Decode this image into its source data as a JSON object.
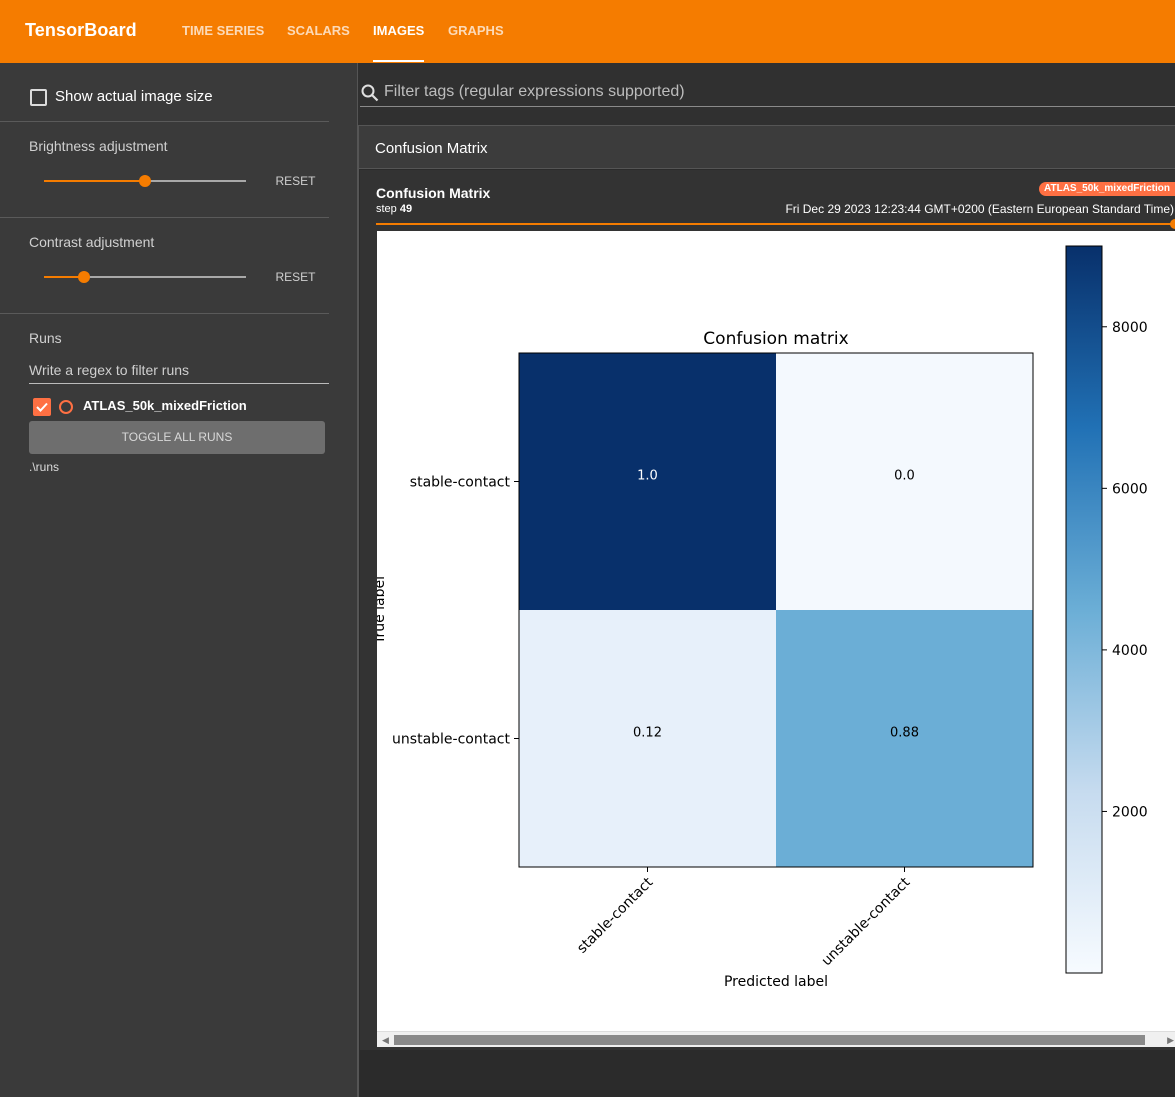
{
  "app": {
    "brand": "TensorBoard",
    "nav_tabs": [
      "TIME SERIES",
      "SCALARS",
      "IMAGES",
      "GRAPHS"
    ],
    "active_tab": "IMAGES",
    "accent_color": "#f57c00",
    "run_color": "#ff7043"
  },
  "sidebar": {
    "show_actual_size_label": "Show actual image size",
    "show_actual_size_checked": false,
    "brightness": {
      "title": "Brightness adjustment",
      "value_fraction": 0.5,
      "reset_label": "RESET"
    },
    "contrast": {
      "title": "Contrast adjustment",
      "value_fraction": 0.2,
      "reset_label": "RESET"
    },
    "runs": {
      "title": "Runs",
      "filter_placeholder": "Write a regex to filter runs",
      "items": [
        {
          "name": "ATLAS_50k_mixedFriction",
          "checked": true
        }
      ],
      "toggle_all_label": "TOGGLE ALL RUNS",
      "path": ".\\runs"
    }
  },
  "main": {
    "filter_placeholder": "Filter tags (regular expressions supported)",
    "group_title": "Confusion Matrix",
    "card": {
      "title": "Confusion Matrix",
      "step_label": "step",
      "step_value": "49",
      "run_tag": "ATLAS_50k_mixedFriction",
      "timestamp": "Fri Dec 29 2023 12:23:44 GMT+0200 (Eastern European Standard Time)"
    }
  },
  "chart_data": {
    "type": "heatmap",
    "title": "Confusion matrix",
    "xlabel": "Predicted label",
    "ylabel": "True label",
    "x_categories": [
      "stable-contact",
      "unstable-contact"
    ],
    "y_categories": [
      "stable-contact",
      "unstable-contact"
    ],
    "cell_labels": [
      [
        "1.0",
        "0.0"
      ],
      [
        "0.12",
        "0.88"
      ]
    ],
    "cell_colors": [
      [
        "#08306b",
        "#f4f9fe"
      ],
      [
        "#e7f0fa",
        "#6baed6"
      ]
    ],
    "colorbar_ticks": [
      2000,
      4000,
      6000,
      8000
    ],
    "colorbar_range": [
      0,
      9000
    ],
    "colormap": "Blues"
  }
}
